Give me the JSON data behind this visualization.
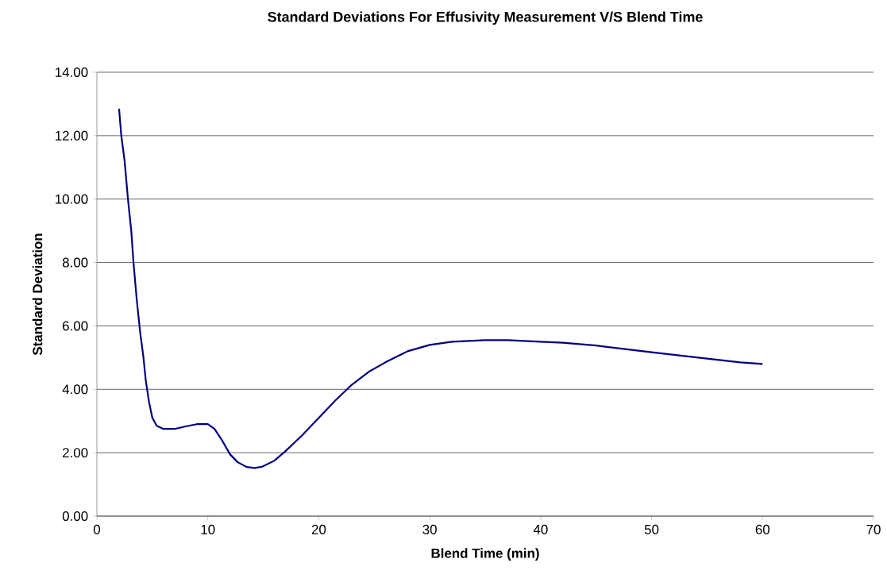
{
  "chart_data": {
    "type": "line",
    "title": "Standard Deviations For Effusivity Measurement V/S Blend Time",
    "xlabel": "Blend Time (min)",
    "ylabel": "Standard Deviation",
    "x": [
      2,
      2.2,
      2.5,
      2.8,
      3.1,
      3.3,
      3.6,
      3.9,
      4.2,
      4.4,
      4.7,
      5,
      5.4,
      6,
      7,
      8,
      9,
      10,
      10.6,
      11.3,
      12,
      12.7,
      13.5,
      14.2,
      14.9,
      16,
      17,
      18.5,
      20,
      21.5,
      23,
      24.5,
      26,
      28,
      30,
      32,
      35,
      37,
      40,
      42,
      45,
      50,
      55,
      58,
      60
    ],
    "series": [
      {
        "color": "#000080",
        "values": [
          12.85,
          12.0,
          11.2,
          10.0,
          9.0,
          8.0,
          6.8,
          5.8,
          5.0,
          4.3,
          3.6,
          3.1,
          2.85,
          2.75,
          2.75,
          2.83,
          2.9,
          2.9,
          2.75,
          2.38,
          1.95,
          1.7,
          1.55,
          1.52,
          1.56,
          1.75,
          2.05,
          2.55,
          3.1,
          3.65,
          4.15,
          4.55,
          4.85,
          5.2,
          5.4,
          5.5,
          5.55,
          5.55,
          5.5,
          5.47,
          5.38,
          5.17,
          4.97,
          4.85,
          4.8
        ]
      }
    ],
    "xlim": [
      0,
      70
    ],
    "ylim": [
      0,
      14
    ],
    "xticks": [
      0,
      10,
      20,
      30,
      40,
      50,
      60,
      70
    ],
    "yticks": [
      {
        "value": 0,
        "label": "0.00"
      },
      {
        "value": 2,
        "label": "2.00"
      },
      {
        "value": 4,
        "label": "4.00"
      },
      {
        "value": 6,
        "label": "6.00"
      },
      {
        "value": 8,
        "label": "8.00"
      },
      {
        "value": 10,
        "label": "10.00"
      },
      {
        "value": 12,
        "label": "12.00"
      },
      {
        "value": 14,
        "label": "14.00"
      }
    ],
    "grid": "y",
    "marker": "none",
    "line_style": "solid"
  }
}
